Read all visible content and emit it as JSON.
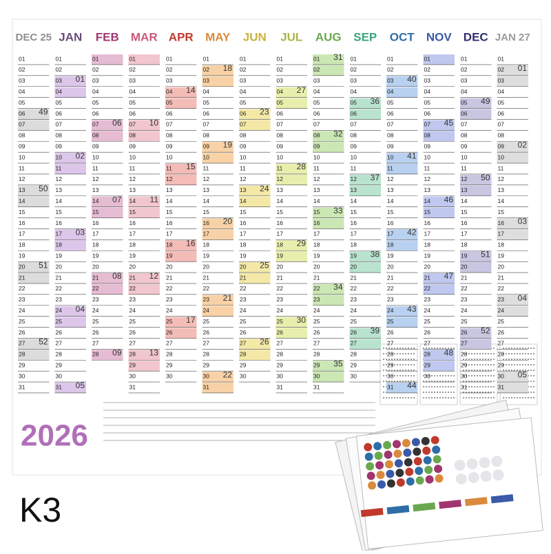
{
  "year": "2026",
  "product_code": "K3",
  "day_labels": [
    "01",
    "02",
    "03",
    "04",
    "05",
    "06",
    "07",
    "08",
    "09",
    "10",
    "11",
    "12",
    "13",
    "14",
    "15",
    "16",
    "17",
    "18",
    "19",
    "20",
    "21",
    "22",
    "23",
    "24",
    "25",
    "26",
    "27",
    "28",
    "29",
    "30",
    "31"
  ],
  "months": [
    {
      "label": "DEC 25",
      "color": "#8e8e8e",
      "highlight": "#dcdcdc",
      "last_day": "31",
      "weeks": [
        {
          "day": "06",
          "week": "49"
        },
        {
          "day": "13",
          "week": "50"
        },
        {
          "day": "20",
          "week": "51"
        },
        {
          "day": "27",
          "week": "52"
        }
      ]
    },
    {
      "label": "JAN",
      "color": "#6b4a7a",
      "highlight": "#dcc6ea",
      "last_day": "31",
      "weeks": [
        {
          "day": "03",
          "week": "01"
        },
        {
          "day": "10",
          "week": "02"
        },
        {
          "day": "17",
          "week": "03"
        },
        {
          "day": "24",
          "week": "04"
        },
        {
          "day": "31",
          "week": "05"
        }
      ]
    },
    {
      "label": "FEB",
      "color": "#a0356f",
      "highlight": "#e6bcd3",
      "last_day": "28",
      "weeks": [
        {
          "day": "07",
          "week": "06"
        },
        {
          "day": "14",
          "week": "07"
        },
        {
          "day": "21",
          "week": "08"
        },
        {
          "day": "28",
          "week": "09"
        }
      ]
    },
    {
      "label": "MAR",
      "color": "#c95a7a",
      "highlight": "#f2c6ce",
      "last_day": "31",
      "weeks": [
        {
          "day": "07",
          "week": "10"
        },
        {
          "day": "14",
          "week": "11"
        },
        {
          "day": "21",
          "week": "12"
        },
        {
          "day": "28",
          "week": "13"
        }
      ]
    },
    {
      "label": "APR",
      "color": "#c0392b",
      "highlight": "#f4bcb7",
      "last_day": "30",
      "weeks": [
        {
          "day": "04",
          "week": "14"
        },
        {
          "day": "11",
          "week": "15"
        },
        {
          "day": "18",
          "week": "16"
        },
        {
          "day": "25",
          "week": "17"
        }
      ]
    },
    {
      "label": "MAY",
      "color": "#d98a3c",
      "highlight": "#f8d2a6",
      "last_day": "31",
      "weeks": [
        {
          "day": "02",
          "week": "18"
        },
        {
          "day": "09",
          "week": "19"
        },
        {
          "day": "16",
          "week": "20"
        },
        {
          "day": "23",
          "week": "21"
        },
        {
          "day": "30",
          "week": "22"
        }
      ]
    },
    {
      "label": "JUN",
      "color": "#c9b23c",
      "highlight": "#f3e8a6",
      "last_day": "30",
      "weeks": [
        {
          "day": "06",
          "week": "23"
        },
        {
          "day": "13",
          "week": "24"
        },
        {
          "day": "20",
          "week": "25"
        },
        {
          "day": "27",
          "week": "26"
        }
      ]
    },
    {
      "label": "JUL",
      "color": "#a9b54a",
      "highlight": "#e8eeac",
      "last_day": "31",
      "weeks": [
        {
          "day": "04",
          "week": "27"
        },
        {
          "day": "11",
          "week": "28"
        },
        {
          "day": "18",
          "week": "29"
        },
        {
          "day": "25",
          "week": "30"
        }
      ]
    },
    {
      "label": "AUG",
      "color": "#6aa84f",
      "highlight": "#cbe7b4",
      "last_day": "31",
      "weeks": [
        {
          "day": "01",
          "week": "31"
        },
        {
          "day": "08",
          "week": "32"
        },
        {
          "day": "15",
          "week": "33"
        },
        {
          "day": "22",
          "week": "34"
        },
        {
          "day": "29",
          "week": "35"
        }
      ]
    },
    {
      "label": "SEP",
      "color": "#3aa37a",
      "highlight": "#bae3cf",
      "last_day": "30",
      "weeks": [
        {
          "day": "05",
          "week": "36"
        },
        {
          "day": "12",
          "week": "37"
        },
        {
          "day": "19",
          "week": "38"
        },
        {
          "day": "26",
          "week": "39"
        }
      ]
    },
    {
      "label": "OCT",
      "color": "#2e6ea8",
      "highlight": "#b9d1f0",
      "last_day": "31",
      "weeks": [
        {
          "day": "03",
          "week": "40"
        },
        {
          "day": "10",
          "week": "41"
        },
        {
          "day": "17",
          "week": "42"
        },
        {
          "day": "24",
          "week": "43"
        },
        {
          "day": "31",
          "week": "44"
        }
      ]
    },
    {
      "label": "NOV",
      "color": "#3b5aa8",
      "highlight": "#c0c8f0",
      "last_day": "30",
      "weeks": [
        {
          "day": "07",
          "week": "45"
        },
        {
          "day": "14",
          "week": "46"
        },
        {
          "day": "21",
          "week": "47"
        },
        {
          "day": "28",
          "week": "48"
        }
      ]
    },
    {
      "label": "DEC",
      "color": "#2d2d6b",
      "highlight": "#c9c6e2",
      "last_day": "31",
      "weeks": [
        {
          "day": "05",
          "week": "49"
        },
        {
          "day": "12",
          "week": "50"
        },
        {
          "day": "19",
          "week": "51"
        },
        {
          "day": "26",
          "week": "52"
        }
      ]
    },
    {
      "label": "JAN 27",
      "color": "#9a9a9a",
      "highlight": "#dedede",
      "last_day": "31",
      "weeks": [
        {
          "day": "02",
          "week": "01"
        },
        {
          "day": "09",
          "week": "02"
        },
        {
          "day": "16",
          "week": "03"
        },
        {
          "day": "23",
          "week": "04"
        },
        {
          "day": "30",
          "week": "05"
        }
      ]
    }
  ]
}
